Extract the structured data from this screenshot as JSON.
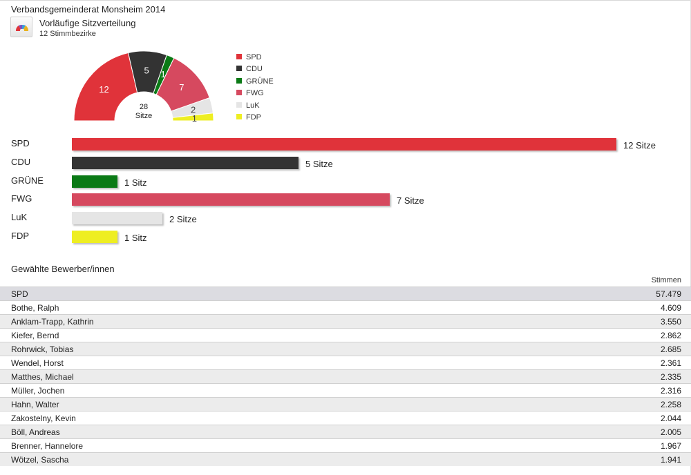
{
  "page": {
    "title": "Verbandsgemeinderat Monsheim 2014",
    "subtitle": "Vorläufige Sitzverteilung",
    "subsubtitle": "12 Stimmbezirke",
    "icon": "hemicycle-icon"
  },
  "chart_data": [
    {
      "type": "pie",
      "variant": "half-donut",
      "categories": [
        "SPD",
        "CDU",
        "GRÜNE",
        "FWG",
        "LuK",
        "FDP"
      ],
      "values": [
        12,
        5,
        1,
        7,
        2,
        1
      ],
      "colors": [
        "#e0333a",
        "#333333",
        "#0b7a16",
        "#d6495f",
        "#e5e5e5",
        "#eeee22"
      ],
      "center_value": "28",
      "center_label": "Sitze",
      "legend": "right"
    },
    {
      "type": "bar",
      "orientation": "horizontal",
      "categories": [
        "SPD",
        "CDU",
        "GRÜNE",
        "FWG",
        "LuK",
        "FDP"
      ],
      "values": [
        12,
        5,
        1,
        7,
        2,
        1
      ],
      "data_labels": [
        "12 Sitze",
        "5 Sitze",
        "1 Sitz",
        "7 Sitze",
        "2 Sitze",
        "1 Sitz"
      ],
      "colors": [
        "#e0333a",
        "#333333",
        "#0b7a16",
        "#d6495f",
        "#e5e5e5",
        "#eeee22"
      ],
      "xlim": [
        0,
        12
      ]
    }
  ],
  "candidates": {
    "title": "Gewählte Bewerber/innen",
    "column_header": "Stimmen",
    "party": {
      "name": "SPD",
      "votes": "57.479"
    },
    "rows": [
      {
        "name": "Bothe, Ralph",
        "votes": "4.609"
      },
      {
        "name": "Anklam-Trapp, Kathrin",
        "votes": "3.550"
      },
      {
        "name": "Kiefer, Bernd",
        "votes": "2.862"
      },
      {
        "name": "Rohrwick, Tobias",
        "votes": "2.685"
      },
      {
        "name": "Wendel, Horst",
        "votes": "2.361"
      },
      {
        "name": "Matthes, Michael",
        "votes": "2.335"
      },
      {
        "name": "Müller, Jochen",
        "votes": "2.316"
      },
      {
        "name": "Hahn, Walter",
        "votes": "2.258"
      },
      {
        "name": "Zakostelny, Kevin",
        "votes": "2.044"
      },
      {
        "name": "Böll, Andreas",
        "votes": "2.005"
      },
      {
        "name": "Brenner, Hannelore",
        "votes": "1.967"
      },
      {
        "name": "Wötzel, Sascha",
        "votes": "1.941"
      }
    ]
  }
}
